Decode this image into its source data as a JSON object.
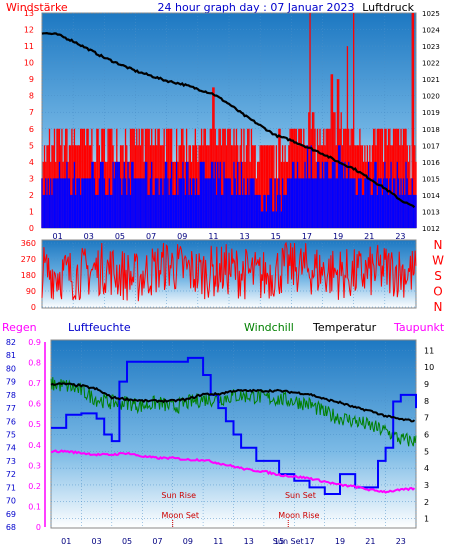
{
  "panel1": {
    "title": "24 hour graph day : 07 Januar 2023",
    "left_label": "Windstärke",
    "right_label": "Luftdruck",
    "left_ticks": [
      "0",
      "1",
      "2",
      "3",
      "4",
      "5",
      "6",
      "7",
      "8",
      "9",
      "10",
      "11",
      "12",
      "13"
    ],
    "right_ticks": [
      "1012",
      "1013",
      "1014",
      "1015",
      "1016",
      "1017",
      "1018",
      "1019",
      "1020",
      "1021",
      "1022",
      "1023",
      "1024",
      "1025"
    ],
    "hour_ticks": [
      "01",
      "03",
      "05",
      "07",
      "09",
      "11",
      "13",
      "15",
      "17",
      "19",
      "21",
      "23"
    ]
  },
  "panel2": {
    "left_ticks": [
      "0",
      "90",
      "180",
      "270",
      "360"
    ],
    "compass": [
      "N",
      "W",
      "S",
      "O",
      "N"
    ]
  },
  "panel3": {
    "labels": {
      "regen": "Regen",
      "luftfeuchte": "Luftfeuchte",
      "windchill": "Windchill",
      "temperatur": "Temperatur",
      "taupunkt": "Taupunkt"
    },
    "humidity_ticks": [
      "68",
      "69",
      "70",
      "71",
      "72",
      "73",
      "74",
      "75",
      "76",
      "77",
      "78",
      "79",
      "80",
      "81",
      "82"
    ],
    "rain_ticks": [
      "0",
      "0.1",
      "0.2",
      "0.3",
      "0.4",
      "0.5",
      "0.6",
      "0.7",
      "0.8",
      "0.9"
    ],
    "temp_ticks": [
      "1",
      "2",
      "3",
      "4",
      "5",
      "6",
      "7",
      "8",
      "9",
      "10",
      "11"
    ],
    "hour_ticks": [
      "01",
      "03",
      "05",
      "07",
      "09",
      "11",
      "13",
      "15",
      "17",
      "19",
      "21",
      "23"
    ],
    "annotations": {
      "sun_rise": "Sun Rise",
      "sun_set": "Sun Set",
      "moon_set": "Moon Set",
      "moon_rise": "Moon Rise",
      "sun_set_axis": "Sun Set"
    }
  },
  "colors": {
    "wind_gust": "#ff0000",
    "wind_avg": "#0000ff",
    "pressure": "#000000",
    "direction": "#ff0000",
    "humidity": "#0000ff",
    "temperature": "#000000",
    "windchill": "#008000",
    "dewpoint": "#ff00ff",
    "rain": "#ff00ff"
  },
  "chart_data": [
    {
      "type": "line",
      "title": "24 hour graph day : 07 Januar 2023",
      "x_unit": "hour",
      "xlim": [
        0,
        24
      ],
      "series": [
        {
          "name": "Luftdruck",
          "axis": "right",
          "x": [
            0,
            1,
            2,
            3,
            4,
            5,
            6,
            7,
            8,
            9,
            10,
            11,
            12,
            13,
            14,
            15,
            16,
            17,
            18,
            19,
            20,
            21,
            22,
            23,
            24
          ],
          "values": [
            1023.8,
            1023.7,
            1023.3,
            1022.8,
            1022.3,
            1021.9,
            1021.5,
            1021.2,
            1020.9,
            1020.7,
            1020.4,
            1020.1,
            1019.5,
            1018.8,
            1018.2,
            1017.6,
            1017.3,
            1016.9,
            1016.5,
            1016.0,
            1015.6,
            1015.0,
            1014.4,
            1013.7,
            1013.2
          ]
        },
        {
          "name": "Windstärke",
          "axis": "left",
          "x": [
            0,
            1,
            2,
            3,
            4,
            5,
            6,
            7,
            8,
            9,
            10,
            11,
            12,
            13,
            14,
            15,
            16,
            17,
            18,
            19,
            20,
            21,
            22,
            23,
            24
          ],
          "values": [
            2,
            3,
            3,
            3,
            3,
            3,
            3,
            3,
            3,
            3,
            3,
            3,
            3,
            3,
            2,
            2,
            3,
            4,
            3,
            4,
            3,
            3,
            3,
            3,
            2
          ]
        }
      ],
      "ylim_left": [
        0,
        13
      ],
      "ylim_right": [
        1012,
        1025
      ]
    },
    {
      "type": "line",
      "x_unit": "hour",
      "xlim": [
        0,
        24
      ],
      "ylim": [
        0,
        360
      ],
      "series": [
        {
          "name": "Windrichtung",
          "x": [
            0,
            2,
            4,
            6,
            8,
            10,
            12,
            14,
            16,
            18,
            20,
            22,
            24
          ],
          "values": [
            200,
            180,
            220,
            160,
            240,
            190,
            210,
            170,
            230,
            200,
            180,
            210,
            190
          ]
        }
      ]
    },
    {
      "type": "line",
      "x_unit": "hour",
      "xlim": [
        0,
        24
      ],
      "series": [
        {
          "name": "Temperatur",
          "axis": "temp",
          "x": [
            0,
            1,
            2,
            3,
            4,
            5,
            6,
            7,
            8,
            9,
            10,
            11,
            12,
            13,
            14,
            15,
            16,
            17,
            18,
            19,
            20,
            21,
            22,
            23,
            24
          ],
          "values": [
            9.0,
            9.0,
            8.9,
            8.7,
            8.2,
            8.1,
            8.0,
            8.0,
            8.0,
            8.1,
            8.4,
            8.4,
            8.6,
            8.6,
            8.6,
            8.6,
            8.5,
            8.4,
            8.1,
            7.9,
            7.6,
            7.4,
            7.1,
            6.9,
            6.8
          ]
        },
        {
          "name": "Windchill",
          "axis": "temp",
          "x": [
            0,
            1,
            2,
            3,
            4,
            5,
            6,
            7,
            8,
            9,
            10,
            11,
            12,
            13,
            14,
            15,
            16,
            17,
            18,
            19,
            20,
            21,
            22,
            23,
            24
          ],
          "values": [
            9.0,
            8.9,
            8.6,
            8.1,
            7.9,
            7.9,
            7.7,
            7.9,
            7.6,
            7.9,
            8.1,
            8.1,
            8.3,
            8.3,
            8.2,
            8.1,
            8.0,
            7.8,
            7.3,
            7.0,
            6.8,
            6.5,
            6.2,
            5.7,
            5.6
          ]
        },
        {
          "name": "Taupunkt",
          "axis": "temp",
          "x": [
            0,
            1,
            2,
            3,
            4,
            5,
            6,
            7,
            8,
            9,
            10,
            11,
            12,
            13,
            14,
            15,
            16,
            17,
            18,
            19,
            20,
            21,
            22,
            23,
            24
          ],
          "values": [
            5.0,
            5.0,
            4.9,
            4.8,
            4.8,
            4.9,
            4.7,
            4.6,
            4.6,
            4.5,
            4.5,
            4.3,
            4.1,
            3.9,
            3.8,
            3.6,
            3.5,
            3.4,
            3.2,
            3.0,
            2.9,
            2.7,
            2.6,
            2.7,
            2.8
          ]
        },
        {
          "name": "Luftfeuchte",
          "axis": "humidity",
          "x": [
            0,
            1,
            2,
            3,
            3.5,
            4,
            4.5,
            5,
            6,
            7,
            7.5,
            8,
            9,
            9.5,
            10,
            10.5,
            11,
            11.5,
            12,
            12.5,
            13,
            13.5,
            14,
            15,
            16,
            17,
            18,
            19,
            19.5,
            20,
            21,
            21.5,
            22,
            22.5,
            23,
            24
          ],
          "values": [
            75.5,
            76.5,
            76.6,
            76.2,
            75,
            74.5,
            79,
            80.5,
            80.5,
            80.5,
            80.5,
            80.5,
            80.8,
            80.8,
            79.5,
            78,
            77,
            76,
            75,
            74,
            74,
            73,
            73,
            72,
            71.5,
            71,
            70.5,
            72,
            72,
            71,
            71,
            73,
            74,
            77.5,
            78,
            77
          ]
        }
      ],
      "ylim_temp": [
        0.5,
        11.5
      ],
      "ylim_humidity": [
        68,
        82
      ],
      "ylim_rain": [
        0,
        0.9
      ]
    }
  ]
}
